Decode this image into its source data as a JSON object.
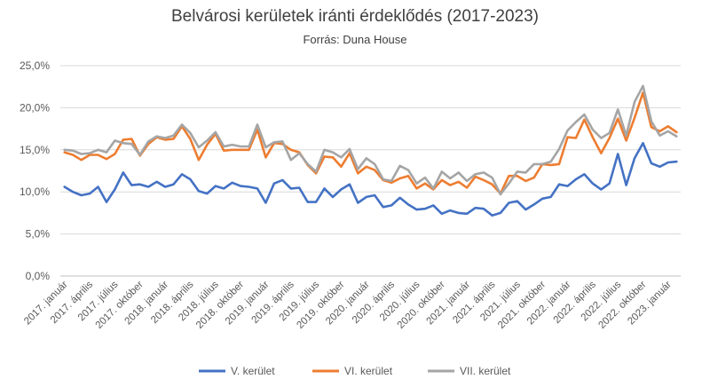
{
  "chart_data": {
    "type": "line",
    "title": "Belvárosi kerületek iránti érdeklődés (2017-2023)",
    "subtitle": "Forrás: Duna House",
    "xlabel": "",
    "ylabel": "",
    "ylim": [
      0,
      25
    ],
    "y_ticks": [
      "0,0%",
      "5,0%",
      "10,0%",
      "15,0%",
      "20,0%",
      "25,0%"
    ],
    "grid": true,
    "legend_position": "bottom",
    "x_tick_labels": [
      "2017. január",
      "2017. április",
      "2017. július",
      "2017. október",
      "2018. január",
      "2018. április",
      "2018. július",
      "2018. október",
      "2019. január",
      "2019. április",
      "2019. július",
      "2019. október",
      "2020. január",
      "2020. április",
      "2020. július",
      "2020. október",
      "2021. január",
      "2021. április",
      "2021. július",
      "2021. október",
      "2022. január",
      "2022. április",
      "2022. július",
      "2022. október",
      "2023. január"
    ],
    "x_tick_every": 3,
    "series": [
      {
        "name": "V. kerület",
        "color": "#4472C4",
        "values": [
          10.6,
          10.0,
          9.6,
          9.8,
          10.6,
          8.8,
          10.3,
          12.3,
          10.8,
          10.9,
          10.6,
          11.2,
          10.6,
          10.9,
          12.1,
          11.5,
          10.1,
          9.8,
          10.7,
          10.4,
          11.1,
          10.7,
          10.6,
          10.4,
          8.7,
          11.0,
          11.4,
          10.4,
          10.5,
          8.8,
          8.8,
          10.4,
          9.4,
          10.3,
          10.9,
          8.7,
          9.4,
          9.6,
          8.2,
          8.4,
          9.3,
          8.5,
          7.9,
          8.0,
          8.4,
          7.4,
          7.8,
          7.5,
          7.4,
          8.1,
          8.0,
          7.2,
          7.5,
          8.7,
          8.9,
          7.9,
          8.5,
          9.2,
          9.4,
          10.9,
          10.7,
          11.5,
          12.1,
          11.0,
          10.3,
          11.0,
          14.5,
          10.8,
          14.0,
          15.8,
          13.4,
          13.0,
          13.5,
          13.6
        ]
      },
      {
        "name": "VI. kerület",
        "color": "#ED7D31",
        "values": [
          14.7,
          14.4,
          13.8,
          14.4,
          14.4,
          13.9,
          14.5,
          16.2,
          16.3,
          14.3,
          15.7,
          16.5,
          16.2,
          16.3,
          17.8,
          16.3,
          13.8,
          15.6,
          16.9,
          14.9,
          15.0,
          15.0,
          15.0,
          17.4,
          14.1,
          15.8,
          15.7,
          15.0,
          14.7,
          13.2,
          12.2,
          14.2,
          14.1,
          13.0,
          14.6,
          12.2,
          13.0,
          12.6,
          11.4,
          11.1,
          11.6,
          11.9,
          10.4,
          11.0,
          10.3,
          11.4,
          10.8,
          11.2,
          10.5,
          11.8,
          11.4,
          10.9,
          9.8,
          11.9,
          11.9,
          11.3,
          11.7,
          13.3,
          13.2,
          13.3,
          16.5,
          16.4,
          18.6,
          16.5,
          14.6,
          16.4,
          18.7,
          16.1,
          18.8,
          21.8,
          17.7,
          17.2,
          17.8,
          17.1
        ]
      },
      {
        "name": "VII. kerület",
        "color": "#A5A5A5",
        "values": [
          15.0,
          14.9,
          14.5,
          14.6,
          15.0,
          14.7,
          16.1,
          15.8,
          15.7,
          14.4,
          16.0,
          16.6,
          16.4,
          16.7,
          18.0,
          17.0,
          15.3,
          16.1,
          17.1,
          15.4,
          15.6,
          15.4,
          15.4,
          18.0,
          15.3,
          15.9,
          16.0,
          13.8,
          14.6,
          13.3,
          12.4,
          15.0,
          14.7,
          14.1,
          15.1,
          12.7,
          14.0,
          13.3,
          11.5,
          11.3,
          13.1,
          12.6,
          11.0,
          11.7,
          10.4,
          12.4,
          11.6,
          12.3,
          11.3,
          12.1,
          12.3,
          11.7,
          9.7,
          11.0,
          12.4,
          12.3,
          13.3,
          13.3,
          13.6,
          15.1,
          17.3,
          18.3,
          19.2,
          17.4,
          16.4,
          17.0,
          19.8,
          16.7,
          20.7,
          22.6,
          18.4,
          16.7,
          17.2,
          16.6
        ]
      }
    ]
  }
}
